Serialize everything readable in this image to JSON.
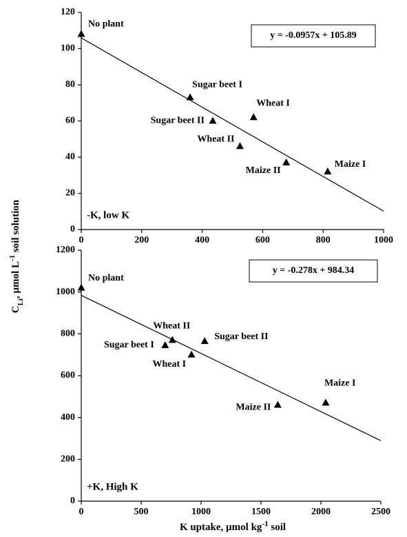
{
  "ylabel": [
    "C",
    "Li",
    ", µmol L",
    "-1",
    " soil solution"
  ],
  "xlabel": [
    "K uptake, µmol kg",
    "-1",
    " soil"
  ],
  "chart_data": [
    {
      "type": "scatter",
      "annotation": "-K, low K",
      "point_labels": [
        "No plant",
        "Sugar beet I",
        "Sugar beet II",
        "Wheat I",
        "Wheat II",
        "Maize II",
        "Maize I"
      ],
      "x": [
        0,
        360,
        435,
        570,
        525,
        678,
        815
      ],
      "values": [
        108,
        73,
        60,
        62,
        46,
        37,
        32
      ],
      "color": "#000000",
      "trendline": {
        "slope": -0.0957,
        "intercept": 105.89,
        "label": "y = -0.0957x + 105.89"
      },
      "xlim": [
        0,
        1000
      ],
      "xticks": [
        0,
        200,
        400,
        600,
        800,
        1000
      ],
      "ylim": [
        0,
        120
      ],
      "yticks": [
        0,
        20,
        40,
        60,
        80,
        100,
        120
      ]
    },
    {
      "type": "scatter",
      "annotation": "+K, High K",
      "point_labels": [
        "No plant",
        "Sugar beet I",
        "Wheat II",
        "Wheat I",
        "Sugar beet II",
        "Maize II",
        "Maize I"
      ],
      "x": [
        0,
        700,
        760,
        920,
        1030,
        1640,
        2040
      ],
      "values": [
        1020,
        745,
        770,
        700,
        765,
        460,
        470
      ],
      "color": "#000000",
      "trendline": {
        "slope": -0.278,
        "intercept": 984.34,
        "label": "y = -0.278x + 984.34"
      },
      "xlim": [
        0,
        2500
      ],
      "xticks": [
        0,
        500,
        1000,
        1500,
        2000,
        2500
      ],
      "ylim": [
        0,
        1200
      ],
      "yticks": [
        0,
        200,
        400,
        600,
        800,
        1000,
        1200
      ]
    }
  ]
}
